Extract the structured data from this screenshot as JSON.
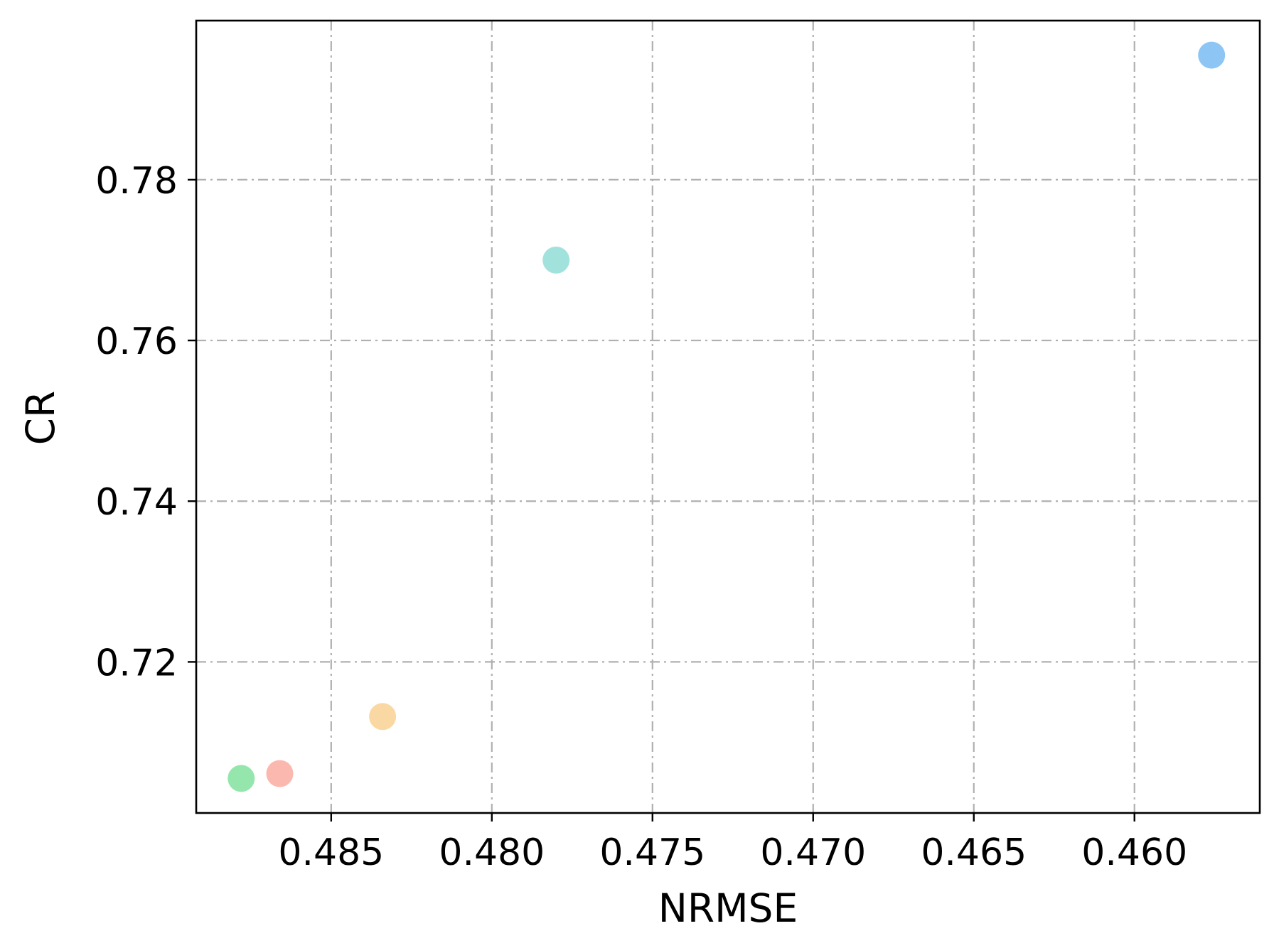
{
  "chart_data": {
    "type": "scatter",
    "title": "",
    "xlabel": "NRMSE",
    "ylabel": "CR",
    "x_inverted": true,
    "xlim": [
      0.4892,
      0.4561
    ],
    "ylim": [
      0.7012,
      0.7998
    ],
    "xticks": [
      0.485,
      0.48,
      0.475,
      0.47,
      0.465,
      0.46
    ],
    "xtick_labels": [
      "0.485",
      "0.480",
      "0.475",
      "0.470",
      "0.465",
      "0.460"
    ],
    "yticks": [
      0.72,
      0.74,
      0.76,
      0.78
    ],
    "ytick_labels": [
      "0.72",
      "0.74",
      "0.76",
      "0.78"
    ],
    "grid": true,
    "points": [
      {
        "x": 0.4878,
        "y": 0.7055,
        "color": "#7ee09a"
      },
      {
        "x": 0.4866,
        "y": 0.7061,
        "color": "#faa89c"
      },
      {
        "x": 0.4834,
        "y": 0.7132,
        "color": "#f9cf8f"
      },
      {
        "x": 0.478,
        "y": 0.77,
        "color": "#8edcd6"
      },
      {
        "x": 0.4576,
        "y": 0.7955,
        "color": "#74b9f2"
      }
    ]
  }
}
